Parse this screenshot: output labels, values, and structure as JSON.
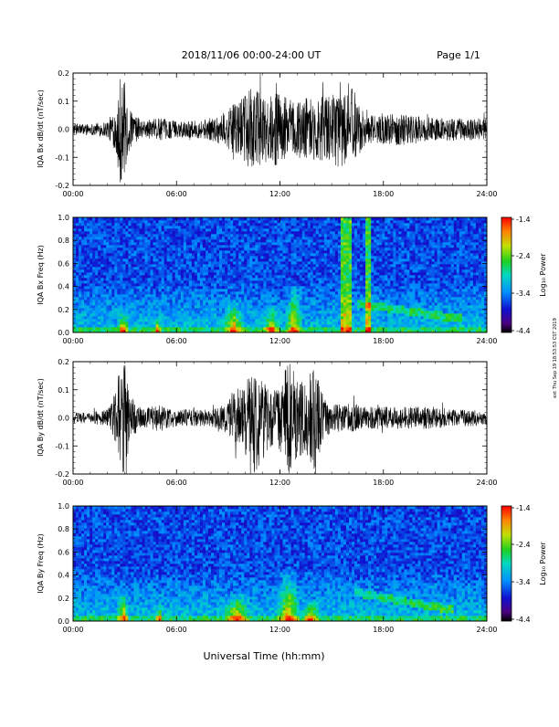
{
  "header": {
    "title": "2018/11/06  00:00-24:00 UT",
    "page_label": "Page 1/1"
  },
  "side_note": "ext Thu Sep 19 18:53:53 CST 2019",
  "xaxis_title": "Universal Time (hh:mm)",
  "colorbar": {
    "label": "Log₁₀ Power",
    "ticks": [
      "-1.4",
      "-2.4",
      "-3.4",
      "-4.4"
    ],
    "range": [
      -4.4,
      -1.4
    ]
  },
  "chart_data": [
    {
      "type": "line",
      "id": "bx-dbdt",
      "ylabel": "IQA Bx dB/dt (nT/sec)",
      "ylim": [
        -0.2,
        0.2
      ],
      "yticks": [
        "0.2",
        "0.1",
        "0.0",
        "-0.1",
        "-0.2"
      ],
      "xlim": [
        0,
        24
      ],
      "xticks": [
        "00:00",
        "06:00",
        "12:00",
        "18:00",
        "24:00"
      ],
      "x_hours": [
        0,
        1,
        2,
        2.5,
        2.7,
        3.0,
        3.3,
        4,
        5,
        6,
        7,
        8,
        9,
        9.5,
        10,
        10.5,
        11,
        11.5,
        12,
        12.5,
        13,
        13.5,
        14,
        14.5,
        15,
        15.5,
        16,
        16.2,
        16.5,
        17,
        18,
        19,
        20,
        21,
        22,
        23,
        24
      ],
      "amplitude": [
        0.02,
        0.02,
        0.03,
        0.08,
        0.2,
        0.17,
        0.07,
        0.03,
        0.04,
        0.03,
        0.03,
        0.04,
        0.07,
        0.1,
        0.12,
        0.16,
        0.12,
        0.12,
        0.14,
        0.11,
        0.1,
        0.12,
        0.11,
        0.12,
        0.12,
        0.14,
        0.12,
        0.18,
        0.1,
        0.05,
        0.05,
        0.06,
        0.05,
        0.04,
        0.04,
        0.04,
        0.04
      ]
    },
    {
      "type": "heatmap",
      "id": "bx-spectrogram",
      "ylabel": "IQA Bx Freq (Hz)",
      "ylim": [
        0,
        1.0
      ],
      "yticks": [
        "1.0",
        "0.8",
        "0.6",
        "0.4",
        "0.2",
        "0.0"
      ],
      "xlim": [
        0,
        24
      ],
      "xticks": [
        "00:00",
        "06:00",
        "12:00",
        "18:00",
        "24:00"
      ],
      "zlim": [
        -4.4,
        -1.4
      ],
      "broadband_hours": [
        [
          15.5,
          16.2
        ],
        [
          17.0,
          17.2
        ]
      ],
      "low_freq_bursts": [
        {
          "t": 2.9,
          "width": 0.35,
          "fmax": 0.2
        },
        {
          "t": 4.9,
          "width": 0.2,
          "fmax": 0.15
        },
        {
          "t": 9.3,
          "width": 0.6,
          "fmax": 0.3
        },
        {
          "t": 11.5,
          "width": 0.5,
          "fmax": 0.25
        },
        {
          "t": 12.8,
          "width": 0.5,
          "fmax": 0.45
        }
      ],
      "band": {
        "t_start": 16.5,
        "t_end": 22.5,
        "f_start": 0.25,
        "f_end": 0.12
      }
    },
    {
      "type": "line",
      "id": "by-dbdt",
      "ylabel": "IQA By dB/dt (nT/sec)",
      "ylim": [
        -0.2,
        0.2
      ],
      "yticks": [
        "0.2",
        "0.1",
        "0.0",
        "-0.1",
        "-0.2"
      ],
      "xlim": [
        0,
        24
      ],
      "xticks": [
        "00:00",
        "06:00",
        "12:00",
        "18:00",
        "24:00"
      ],
      "x_hours": [
        0,
        1,
        2,
        2.5,
        2.7,
        3.0,
        3.3,
        4,
        5,
        6,
        7,
        8,
        9,
        9.5,
        10,
        10.5,
        11,
        11.5,
        12,
        12.5,
        13,
        13.5,
        14,
        14.5,
        15,
        15.5,
        16,
        16.5,
        17,
        18,
        19,
        20,
        21,
        22,
        23,
        24
      ],
      "amplitude": [
        0.02,
        0.02,
        0.03,
        0.1,
        0.2,
        0.2,
        0.08,
        0.03,
        0.05,
        0.03,
        0.03,
        0.03,
        0.06,
        0.1,
        0.13,
        0.2,
        0.15,
        0.1,
        0.12,
        0.2,
        0.15,
        0.12,
        0.2,
        0.08,
        0.05,
        0.05,
        0.05,
        0.05,
        0.04,
        0.04,
        0.04,
        0.04,
        0.04,
        0.03,
        0.03,
        0.03
      ]
    },
    {
      "type": "heatmap",
      "id": "by-spectrogram",
      "ylabel": "IQA By Freq (Hz)",
      "ylim": [
        0,
        1.0
      ],
      "yticks": [
        "1.0",
        "0.8",
        "0.6",
        "0.4",
        "0.2",
        "0.0"
      ],
      "xlim": [
        0,
        24
      ],
      "xticks": [
        "00:00",
        "06:00",
        "12:00",
        "18:00",
        "24:00"
      ],
      "zlim": [
        -4.4,
        -1.4
      ],
      "broadband_hours": [],
      "low_freq_bursts": [
        {
          "t": 2.9,
          "width": 0.35,
          "fmax": 0.3
        },
        {
          "t": 5.0,
          "width": 0.2,
          "fmax": 0.15
        },
        {
          "t": 9.5,
          "width": 0.8,
          "fmax": 0.25
        },
        {
          "t": 12.5,
          "width": 0.7,
          "fmax": 0.5
        },
        {
          "t": 13.8,
          "width": 0.5,
          "fmax": 0.2
        }
      ],
      "band": {
        "t_start": 16.3,
        "t_end": 22.0,
        "f_start": 0.25,
        "f_end": 0.1
      }
    }
  ]
}
